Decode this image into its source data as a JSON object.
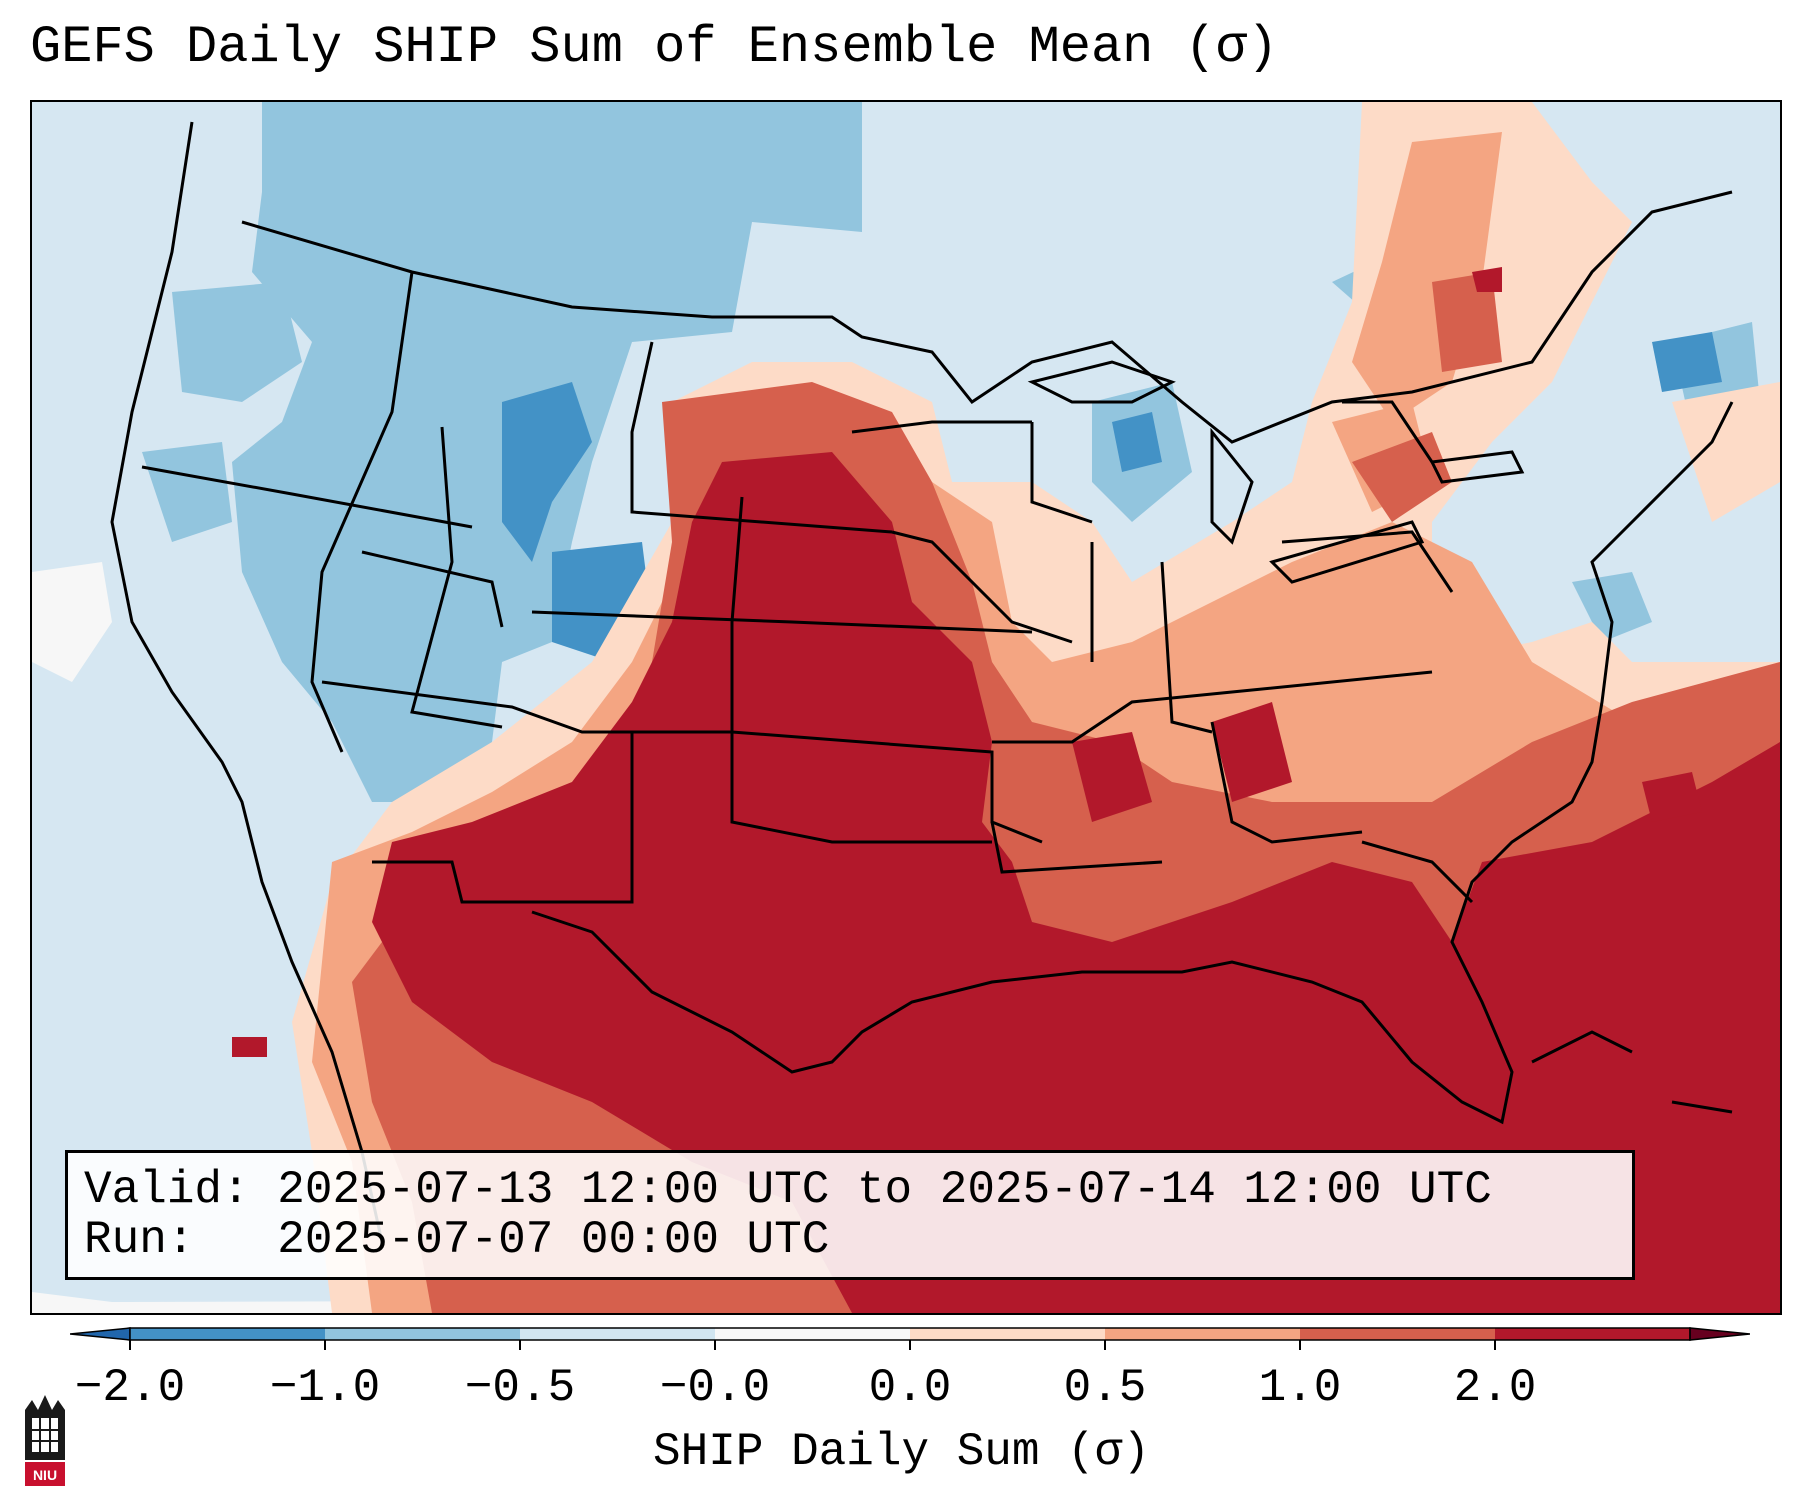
{
  "title": "GEFS Daily SHIP Sum of Ensemble Mean (σ)",
  "info": {
    "valid_label": "Valid:",
    "valid_value": "2025-07-13 12:00 UTC to 2025-07-14 12:00 UTC",
    "run_label": "Run:",
    "run_value": "2025-07-07 00:00 UTC"
  },
  "colorbar": {
    "label": "SHIP Daily Sum (σ)",
    "ticks": [
      "−2.0",
      "−1.0",
      "−0.5",
      "−0.0",
      "0.0",
      "0.5",
      "1.0",
      "2.0"
    ],
    "colors": [
      "#4392c6",
      "#92c5de",
      "#d1e5f0",
      "#f7f7f7",
      "#fddbc7",
      "#f4a582",
      "#d6604d",
      "#b2182b"
    ],
    "extend_low_color": "#2166ac",
    "extend_high_color": "#67001f"
  },
  "logo": {
    "text": "NIU",
    "icon": "niu-castle-icon",
    "color": "#c8102e"
  }
}
